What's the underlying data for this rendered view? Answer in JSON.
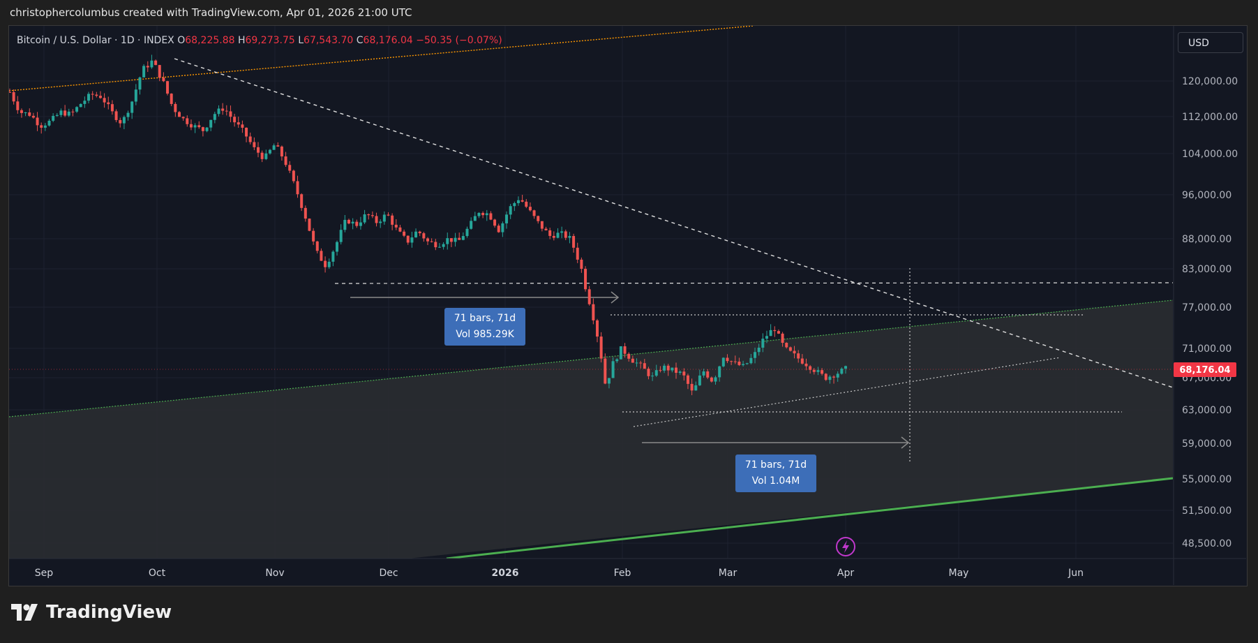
{
  "header": {
    "attribution": "christophercolumbus created with TradingView.com, Apr 01, 2026 21:00 UTC"
  },
  "legend": {
    "symbol": "Bitcoin / U.S. Dollar · 1D · INDEX",
    "o_label": "O",
    "o": "68,225.88",
    "h_label": "H",
    "h": "69,273.75",
    "l_label": "L",
    "l": "67,543.70",
    "c_label": "C",
    "c": "68,176.04",
    "change": "−50.35 (−0.07%)"
  },
  "currency_button": "USD",
  "footer": {
    "brand": "TradingView"
  },
  "colors": {
    "up": "#26a69a",
    "down": "#ef5350",
    "price_tag": "#f23645",
    "note_bg": "#3d6eb8",
    "trend_green": "#4caf50",
    "trend_orange": "#ff9800"
  },
  "chart_data": {
    "type": "candlestick",
    "y_axis": {
      "ticks": [
        "120,000.00",
        "112,000.00",
        "104,000.00",
        "96,000.00",
        "88,000.00",
        "83,000.00",
        "77,000.00",
        "71,000.00",
        "67,000.00",
        "63,000.00",
        "59,000.00",
        "55,000.00",
        "51,500.00",
        "48,500.00"
      ]
    },
    "x_axis": {
      "ticks": [
        "Sep",
        "Oct",
        "Nov",
        "Dec",
        "2026",
        "Feb",
        "Mar",
        "Apr",
        "May",
        "Jun"
      ]
    },
    "last_price": "68,176.04",
    "measurements": [
      {
        "bars": "71 bars, 71d",
        "vol": "Vol 985.29K"
      },
      {
        "bars": "71 bars, 71d",
        "vol": "Vol 1.04M"
      }
    ],
    "alert_icon": "lightning-icon",
    "series_path": [
      [
        0,
        117500
      ],
      [
        10,
        113000
      ],
      [
        20,
        112500
      ],
      [
        30,
        110000
      ],
      [
        40,
        111000
      ],
      [
        50,
        113000
      ],
      [
        60,
        112500
      ],
      [
        70,
        115000
      ],
      [
        80,
        117000
      ],
      [
        90,
        116500
      ],
      [
        100,
        113000
      ],
      [
        110,
        110500
      ],
      [
        120,
        115500
      ],
      [
        130,
        122500
      ],
      [
        140,
        124500
      ],
      [
        150,
        120000
      ],
      [
        160,
        114000
      ],
      [
        170,
        111500
      ],
      [
        180,
        110000
      ],
      [
        190,
        109000
      ],
      [
        200,
        112500
      ],
      [
        210,
        114000
      ],
      [
        220,
        111000
      ],
      [
        230,
        108500
      ],
      [
        240,
        105000
      ],
      [
        250,
        103000
      ],
      [
        260,
        106000
      ],
      [
        270,
        102500
      ],
      [
        280,
        97500
      ],
      [
        290,
        92000
      ],
      [
        300,
        86000
      ],
      [
        310,
        83500
      ],
      [
        320,
        87000
      ],
      [
        330,
        91500
      ],
      [
        340,
        90500
      ],
      [
        350,
        92500
      ],
      [
        360,
        91000
      ],
      [
        370,
        92500
      ],
      [
        380,
        89500
      ],
      [
        390,
        87500
      ],
      [
        400,
        89500
      ],
      [
        410,
        87500
      ],
      [
        420,
        87000
      ],
      [
        430,
        88000
      ],
      [
        440,
        87500
      ],
      [
        450,
        90000
      ],
      [
        460,
        93000
      ],
      [
        470,
        92500
      ],
      [
        480,
        89500
      ],
      [
        490,
        93500
      ],
      [
        500,
        95500
      ],
      [
        510,
        93000
      ],
      [
        520,
        90500
      ],
      [
        530,
        88500
      ],
      [
        540,
        89000
      ],
      [
        550,
        88000
      ],
      [
        560,
        83500
      ],
      [
        565,
        80000
      ],
      [
        570,
        77000
      ],
      [
        575,
        74000
      ],
      [
        580,
        70000
      ],
      [
        585,
        65500
      ],
      [
        590,
        68500
      ],
      [
        600,
        71000
      ],
      [
        610,
        69500
      ],
      [
        620,
        68500
      ],
      [
        630,
        67000
      ],
      [
        640,
        68500
      ],
      [
        650,
        68000
      ],
      [
        660,
        67500
      ],
      [
        670,
        65000
      ],
      [
        680,
        68000
      ],
      [
        690,
        66500
      ],
      [
        700,
        70000
      ],
      [
        710,
        69000
      ],
      [
        720,
        68500
      ],
      [
        730,
        70000
      ],
      [
        740,
        72500
      ],
      [
        750,
        74000
      ],
      [
        760,
        71000
      ],
      [
        770,
        70000
      ],
      [
        780,
        69000
      ],
      [
        790,
        68000
      ],
      [
        800,
        67000
      ],
      [
        810,
        67500
      ],
      [
        820,
        68200
      ]
    ]
  }
}
